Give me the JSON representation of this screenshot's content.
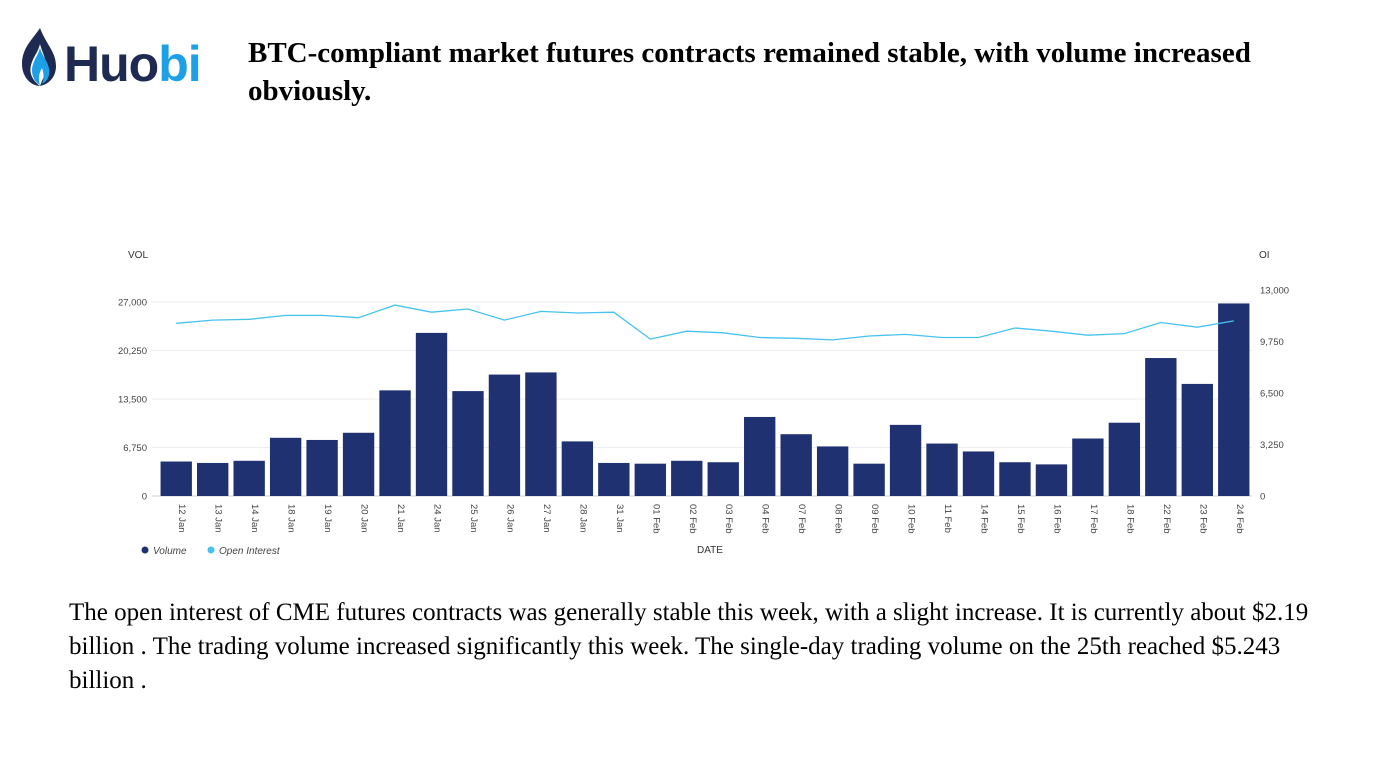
{
  "logo": {
    "text": "Huobi",
    "dark_color": "#1e2a52",
    "accent_color": "#1ea0e6"
  },
  "headline": "BTC-compliant market futures contracts remained stable, with volume increased obviously.",
  "body_text": "The open interest of CME futures contracts was generally stable this week, with a slight increase. It is currently about $2.19 billion . The trading volume increased significantly this week. The single-day trading volume on the 25th reached $5.243 billion .",
  "chart_data": {
    "type": "bar",
    "title": "",
    "xlabel": "DATE",
    "ylabel_left": "VOL",
    "ylabel_right": "OI",
    "categories": [
      "12 Jan",
      "13 Jan",
      "14 Jan",
      "18 Jan",
      "19 Jan",
      "20 Jan",
      "21 Jan",
      "24 Jan",
      "25 Jan",
      "26 Jan",
      "27 Jan",
      "28 Jan",
      "31 Jan",
      "01 Feb",
      "02 Feb",
      "03 Feb",
      "04 Feb",
      "07 Feb",
      "08 Feb",
      "09 Feb",
      "10 Feb",
      "11 Feb",
      "14 Feb",
      "15 Feb",
      "16 Feb",
      "17 Feb",
      "18 Feb",
      "22 Feb",
      "23 Feb",
      "24 Feb"
    ],
    "yticks_left": [
      "0",
      "6,750",
      "13,500",
      "20,250",
      "27,000"
    ],
    "yticks_right": [
      "0",
      "3,250",
      "6,500",
      "9,750",
      "13,000"
    ],
    "ylim_left": [
      0,
      27000
    ],
    "ylim_right": [
      0,
      13000
    ],
    "grid": true,
    "legend_position": "bottom-left",
    "series": [
      {
        "name": "Volume",
        "type": "bar",
        "axis": "left",
        "color": "#1f3171",
        "values": [
          4800,
          4600,
          4900,
          8100,
          7800,
          8800,
          14700,
          22700,
          14600,
          16900,
          17200,
          7600,
          4600,
          4500,
          4900,
          4700,
          11000,
          8600,
          6900,
          4500,
          9900,
          7300,
          6200,
          4700,
          4400,
          8000,
          10200,
          19200,
          15600,
          26800
        ]
      },
      {
        "name": "Open Interest",
        "type": "line",
        "axis": "right",
        "color": "#45c3f0",
        "values": [
          10900,
          11100,
          11150,
          11400,
          11400,
          11250,
          12050,
          11600,
          11800,
          11100,
          11650,
          11550,
          11600,
          9900,
          10400,
          10300,
          10000,
          9950,
          9850,
          10100,
          10200,
          10000,
          10000,
          10600,
          10400,
          10150,
          10250,
          10950,
          10650,
          11050
        ]
      }
    ]
  }
}
